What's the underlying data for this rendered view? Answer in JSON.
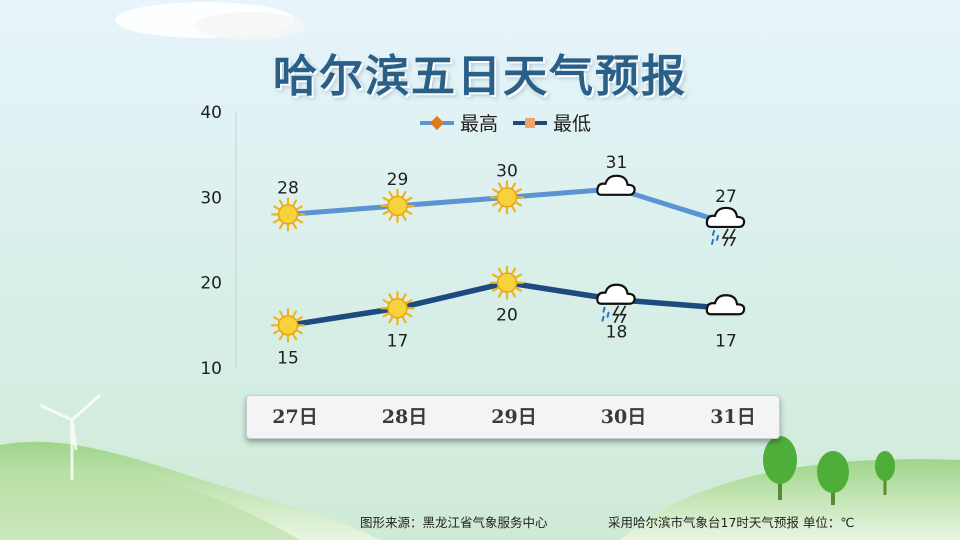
{
  "title": "哈尔滨五日天气预报",
  "footer": {
    "source": "图形来源：黑龙江省气象服务中心",
    "note": "采用哈尔滨市气象台17时天气预报 单位：℃"
  },
  "chart_data": {
    "type": "line",
    "categories": [
      "27日",
      "28日",
      "29日",
      "30日",
      "31日"
    ],
    "ylim": [
      10,
      40
    ],
    "yticks": [
      "10",
      "20",
      "30",
      "40"
    ],
    "legend_position": "top",
    "grid": false,
    "series": [
      {
        "name": "最高",
        "color": "#5b93d3",
        "marker_color": "#e07a1f",
        "values": [
          28,
          29,
          30,
          31,
          27
        ],
        "labels": [
          "28",
          "29",
          "30",
          "31",
          "27"
        ],
        "icons": [
          "sun",
          "sun",
          "sun",
          "cloudy",
          "thunderstorm"
        ]
      },
      {
        "name": "最低",
        "color": "#1d4b80",
        "marker_color": "#f3a367",
        "values": [
          15,
          17,
          20,
          18,
          17
        ],
        "labels": [
          "15",
          "17",
          "20",
          "18",
          "17"
        ],
        "icons": [
          "sun",
          "sun",
          "sun",
          "thunderstorm",
          "cloudy"
        ]
      }
    ]
  }
}
